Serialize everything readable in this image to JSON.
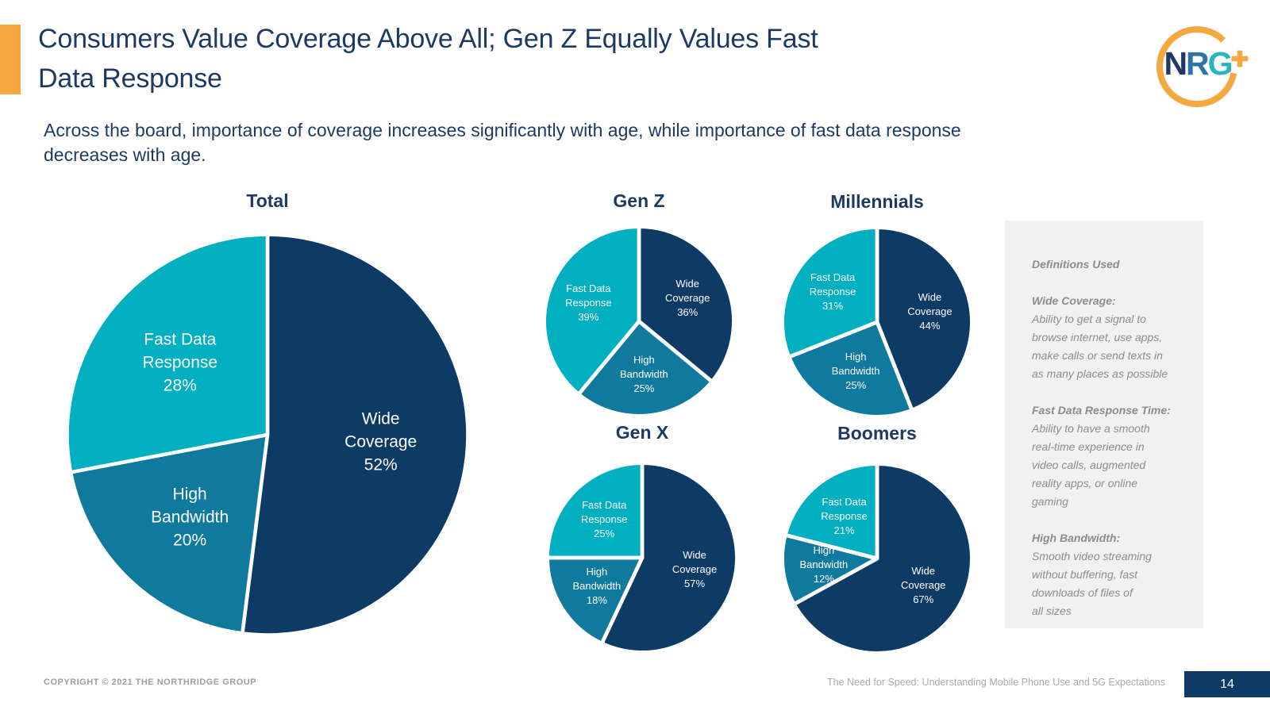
{
  "header": {
    "title": "Consumers Value Coverage Above All; Gen Z Equally Values Fast\nData Response",
    "subtitle": "Across the board, importance of coverage increases significantly with age, while importance of fast data response\ndecreases with age."
  },
  "logo": {
    "n": "N",
    "r": "R",
    "g": "G",
    "plus": "+"
  },
  "chart_data": [
    {
      "type": "pie",
      "title": "Total",
      "slices": [
        {
          "label": "Wide Coverage",
          "label_lines": [
            "Wide",
            "Coverage"
          ],
          "value": 52,
          "color": "#0E3A66"
        },
        {
          "label": "High Bandwidth",
          "label_lines": [
            "High",
            "Bandwidth"
          ],
          "value": 20,
          "color": "#0F7A9D"
        },
        {
          "label": "Fast Data Response",
          "label_lines": [
            "Fast Data",
            "Response"
          ],
          "value": 28,
          "color": "#00AFC0"
        }
      ]
    },
    {
      "type": "pie",
      "title": "Gen Z",
      "slices": [
        {
          "label": "Wide Coverage",
          "label_lines": [
            "Wide",
            "Coverage"
          ],
          "value": 36,
          "color": "#0E3A66"
        },
        {
          "label": "High Bandwidth",
          "label_lines": [
            "High",
            "Bandwidth"
          ],
          "value": 25,
          "color": "#0F7A9D"
        },
        {
          "label": "Fast Data Response",
          "label_lines": [
            "Fast Data",
            "Response"
          ],
          "value": 39,
          "color": "#00AFC0"
        }
      ]
    },
    {
      "type": "pie",
      "title": "Millennials",
      "slices": [
        {
          "label": "Wide Coverage",
          "label_lines": [
            "Wide",
            "Coverage"
          ],
          "value": 44,
          "color": "#0E3A66"
        },
        {
          "label": "High Bandwidth",
          "label_lines": [
            "High",
            "Bandwidth"
          ],
          "value": 25,
          "color": "#0F7A9D"
        },
        {
          "label": "Fast Data Response",
          "label_lines": [
            "Fast Data",
            "Response"
          ],
          "value": 31,
          "color": "#00AFC0"
        }
      ]
    },
    {
      "type": "pie",
      "title": "Gen X",
      "slices": [
        {
          "label": "Wide Coverage",
          "label_lines": [
            "Wide",
            "Coverage"
          ],
          "value": 57,
          "color": "#0E3A66"
        },
        {
          "label": "High Bandwidth",
          "label_lines": [
            "High",
            "Bandwidth"
          ],
          "value": 18,
          "color": "#0F7A9D"
        },
        {
          "label": "Fast Data Response",
          "label_lines": [
            "Fast Data",
            "Response"
          ],
          "value": 25,
          "color": "#00AFC0"
        }
      ]
    },
    {
      "type": "pie",
      "title": "Boomers",
      "slices": [
        {
          "label": "Wide Coverage",
          "label_lines": [
            "Wide",
            "Coverage"
          ],
          "value": 67,
          "color": "#0E3A66"
        },
        {
          "label": "High Bandwidth",
          "label_lines": [
            "High",
            "Bandwidth"
          ],
          "value": 12,
          "color": "#0F7A9D"
        },
        {
          "label": "Fast Data Response",
          "label_lines": [
            "Fast Data",
            "Response"
          ],
          "value": 21,
          "color": "#00AFC0"
        }
      ]
    }
  ],
  "definitions": {
    "heading": "Definitions Used",
    "items": [
      {
        "term": "Wide Coverage:",
        "body": "Ability to get a signal to\nbrowse internet, use apps,\nmake calls or send texts in\nas many places as possible"
      },
      {
        "term": "Fast Data Response Time:",
        "body": "Ability to have a smooth\nreal-time experience in\nvideo calls, augmented\nreality apps, or online\ngaming"
      },
      {
        "term": "High Bandwidth:",
        "body": "Smooth video streaming\nwithout buffering, fast\ndownloads of files of\nall sizes"
      }
    ]
  },
  "footer": {
    "copyright": "COPYRIGHT © 2021 THE NORTHRIDGE GROUP",
    "report_title": "The Need for Speed: Understanding Mobile Phone Use and 5G Expectations",
    "page_number": "14"
  },
  "colors": {
    "navy": "#0E3A66",
    "teal_light": "#00AFC0",
    "teal_mid": "#0F7A9D",
    "orange": "#F5A83F",
    "title_text": "#1C3A63",
    "definitions_text": "#8C8C8C",
    "definitions_bg": "#F1F1F2"
  }
}
